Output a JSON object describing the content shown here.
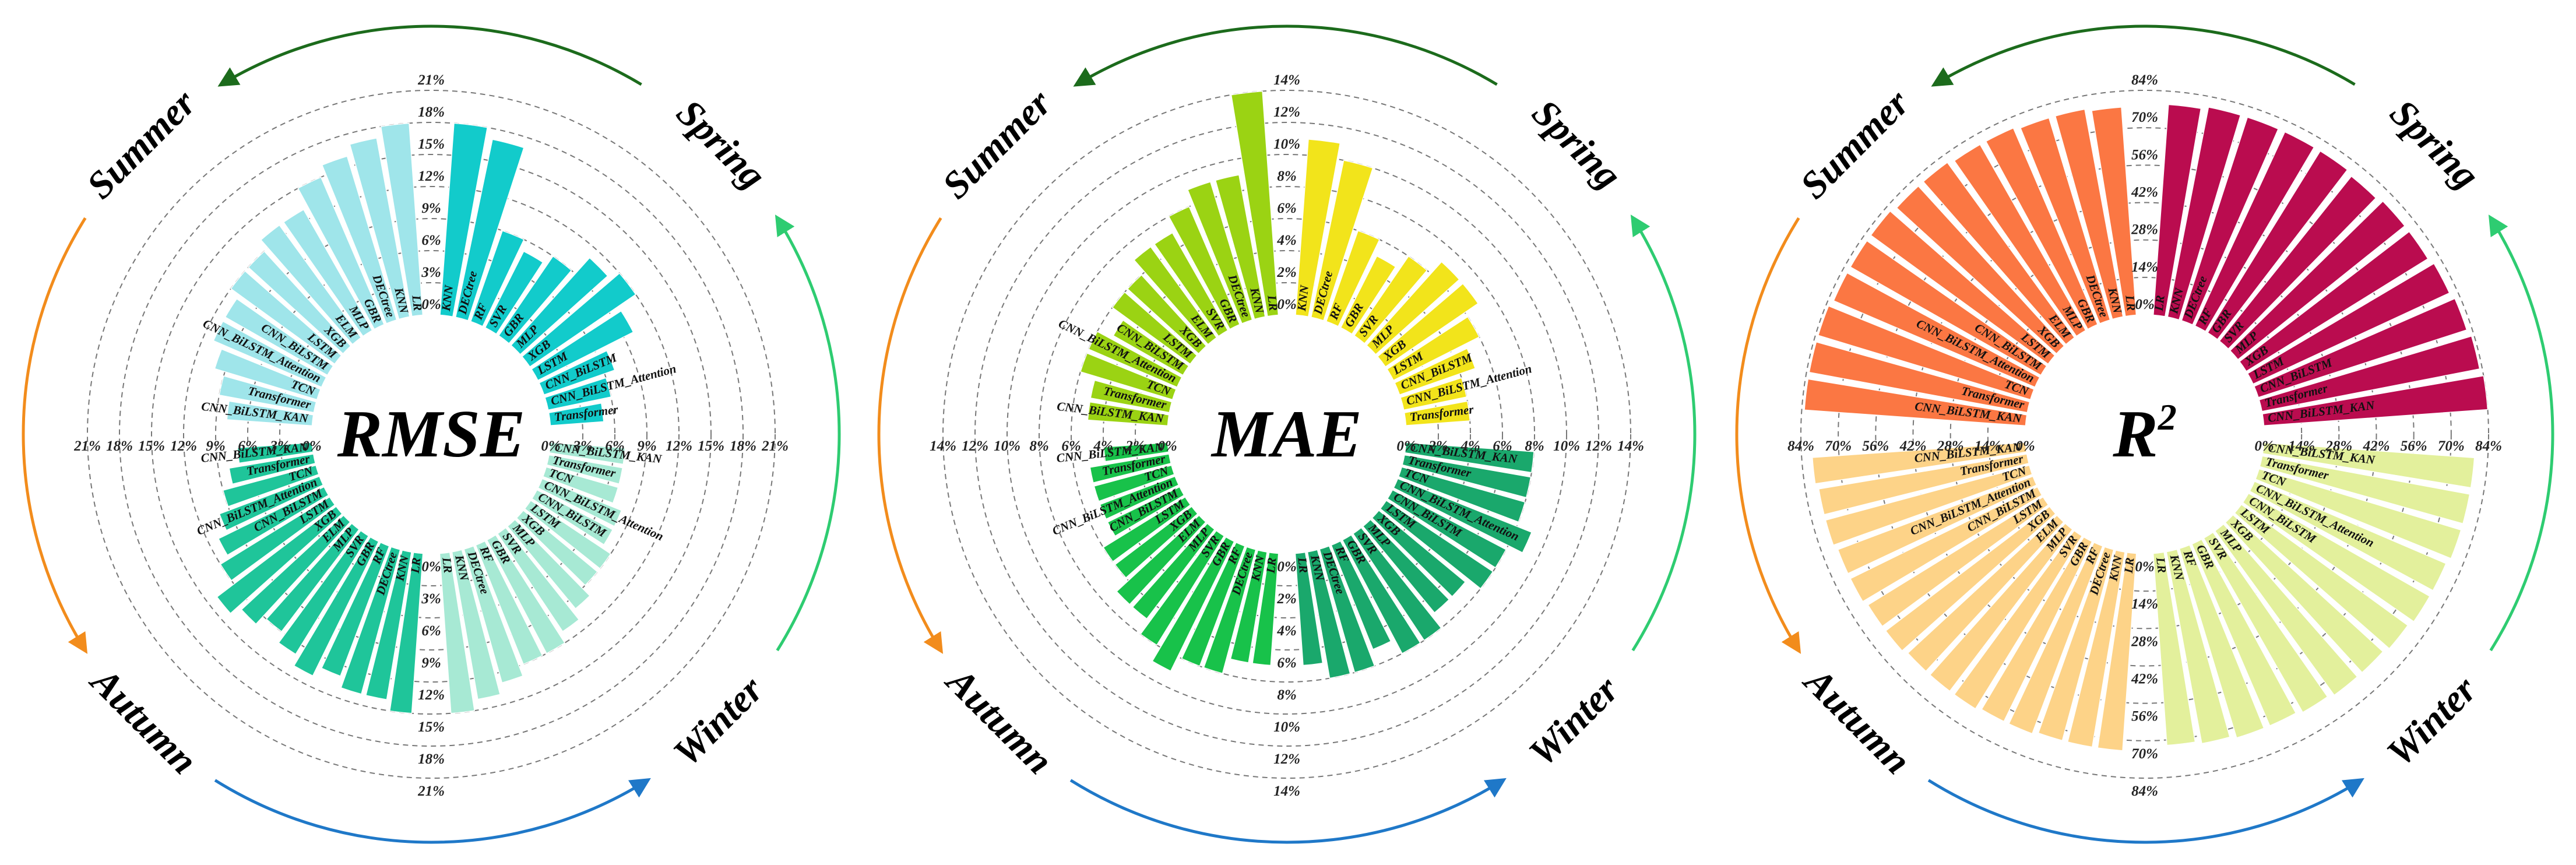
{
  "chart_data": [
    {
      "type": "radial-bar",
      "title": "RMSE",
      "title_sup": "",
      "tick_suffix": "%",
      "ticks": [
        0,
        3,
        6,
        9,
        12,
        15,
        18,
        21
      ],
      "rmax": 21,
      "season_order": [
        "Spring",
        "Winter",
        "Autumn",
        "Summer"
      ],
      "seasons": [
        {
          "name": "Spring",
          "color": "#12cbcb",
          "models": [
            "KNN",
            "DECtree",
            "RF",
            "SVR",
            "GBR",
            "MLP",
            "XGB",
            "LSTM",
            "CNN_BiLSTM",
            "CNN_BiLSTM_Attention",
            "Transformer"
          ],
          "values": [
            18,
            17,
            9,
            8,
            9,
            11,
            12,
            10,
            7,
            6,
            5
          ]
        },
        {
          "name": "Winter",
          "color": "#a7e9d4",
          "models": [
            "CNN_BiLSTM_KAN",
            "Transformer",
            "TCN",
            "CNN_BiLSTM_Attention",
            "CNN_BiLSTM",
            "LSTM",
            "XGB",
            "MLP",
            "SVR",
            "GBR",
            "RF",
            "DECtree",
            "KNN",
            "LR"
          ],
          "values": [
            7,
            7,
            7,
            8,
            8,
            9,
            9,
            10,
            11,
            12,
            12,
            13,
            14,
            15
          ]
        },
        {
          "name": "Autumn",
          "color": "#1fc59a",
          "models": [
            "LR",
            "KNN",
            "DECtree",
            "RF",
            "GBR",
            "SVR",
            "MLP",
            "ELM",
            "XGB",
            "LSTM",
            "CNN_BiLSTM",
            "CNN_BiLSTM_Attention",
            "TCN",
            "Transformer",
            "CNN_BiLSTM_KAN"
          ],
          "values": [
            15,
            14,
            14,
            13,
            14,
            13,
            12,
            13,
            14,
            12,
            11,
            10,
            9,
            8,
            7
          ]
        },
        {
          "name": "Summer",
          "color": "#9fe5ea",
          "models": [
            "CNN_BiLSTM_KAN",
            "Transformer",
            "TCN",
            "CNN_BiLSTM_Attention",
            "CNN_BiLSTM",
            "LSTM",
            "XGB",
            "ELM",
            "MLP",
            "GBR",
            "DECtree",
            "KNN",
            "LR"
          ],
          "values": [
            8,
            9,
            10,
            11,
            11,
            12,
            12,
            13,
            13,
            15,
            16,
            17,
            18
          ]
        }
      ]
    },
    {
      "type": "radial-bar",
      "title": "MAE",
      "title_sup": "",
      "tick_suffix": "%",
      "ticks": [
        0,
        2,
        4,
        6,
        8,
        10,
        12,
        14
      ],
      "rmax": 14,
      "season_order": [
        "Spring",
        "Winter",
        "Autumn",
        "Summer"
      ],
      "seasons": [
        {
          "name": "Spring",
          "color": "#f2e41b",
          "models": [
            "KNN",
            "DECtree",
            "RF",
            "GBR",
            "SVR",
            "MLP",
            "XGB",
            "LSTM",
            "CNN_BiLSTM",
            "CNN_BiLSTM_Attention",
            "Transformer"
          ],
          "values": [
            11,
            10,
            6,
            5,
            6,
            7,
            7,
            6,
            5,
            4,
            4
          ]
        },
        {
          "name": "Winter",
          "color": "#1aa86c",
          "models": [
            "CNN_BiLSTM_KAN",
            "Transformer",
            "TCN",
            "CNN_BiLSTM_Attention",
            "CNN_BiLSTM",
            "LSTM",
            "XGB",
            "MLP",
            "SVR",
            "GBR",
            "RF",
            "DECtree",
            "KNN",
            "LR"
          ],
          "values": [
            8,
            8,
            8,
            9,
            8,
            8,
            7,
            7,
            8,
            8,
            7,
            8,
            8,
            7
          ]
        },
        {
          "name": "Autumn",
          "color": "#18c24a",
          "models": [
            "LR",
            "KNN",
            "DECtree",
            "RF",
            "GBR",
            "SVR",
            "MLP",
            "ELM",
            "XGB",
            "LSTM",
            "CNN_BiLSTM",
            "CNN_BiLSTM_Attention",
            "TCN",
            "Transformer",
            "CNN_BiLSTM_KAN"
          ],
          "values": [
            7,
            7,
            8,
            8,
            9,
            8,
            7,
            7,
            6,
            6,
            5,
            5,
            5,
            5,
            4
          ]
        },
        {
          "name": "Summer",
          "color": "#9bd313",
          "models": [
            "CNN_BiLSTM_KAN",
            "Transformer",
            "TCN",
            "CNN_BiLSTM_Attention",
            "CNN_BiLSTM",
            "LSTM",
            "XGB",
            "ELM",
            "SVR",
            "GBR",
            "DECtree",
            "KNN",
            "LR"
          ],
          "values": [
            5,
            5,
            6,
            6,
            5,
            6,
            6,
            7,
            7,
            8,
            9,
            9,
            14
          ]
        }
      ]
    },
    {
      "type": "radial-bar",
      "title": "R",
      "title_sup": "2",
      "tick_suffix": "%",
      "ticks": [
        0,
        14,
        28,
        42,
        56,
        70,
        84
      ],
      "rmax": 84,
      "season_order": [
        "Spring",
        "Winter",
        "Autumn",
        "Summer"
      ],
      "seasons": [
        {
          "name": "Spring",
          "color": "#ba0c4f",
          "models": [
            "LR",
            "KNN",
            "DECtree",
            "RF",
            "GBR",
            "SVR",
            "MLP",
            "XGB",
            "LSTM",
            "CNN_BiLSTM",
            "Transformer",
            "CNN_BiLSTM_KAN"
          ],
          "values": [
            79,
            80,
            80,
            80,
            80,
            79,
            80,
            80,
            81,
            82,
            83,
            84
          ]
        },
        {
          "name": "Winter",
          "color": "#e3f09c",
          "models": [
            "CNN_BiLSTM_KAN",
            "Transformer",
            "TCN",
            "CNN_BiLSTM_Attention",
            "CNN_BiLSTM",
            "LSTM",
            "XGB",
            "MLP",
            "SVR",
            "GBR",
            "RF",
            "KNN",
            "LR"
          ],
          "values": [
            79,
            79,
            79,
            78,
            78,
            77,
            76,
            76,
            75,
            74,
            74,
            73,
            72
          ]
        },
        {
          "name": "Autumn",
          "color": "#fdd388",
          "models": [
            "LR",
            "KNN",
            "DECtree",
            "RF",
            "GBR",
            "SVR",
            "MLP",
            "ELM",
            "XGB",
            "LSTM",
            "CNN_BiLSTM",
            "CNN_BiLSTM_Attention",
            "TCN",
            "Transformer",
            "CNN_BiLSTM_KAN"
          ],
          "values": [
            74,
            74,
            74,
            75,
            75,
            76,
            76,
            76,
            77,
            77,
            78,
            78,
            79,
            79,
            80
          ]
        },
        {
          "name": "Summer",
          "color": "#fb7743",
          "models": [
            "CNN_BiLSTM_KAN",
            "Transformer",
            "TCN",
            "CNN_BiLSTM_Attention",
            "CNN_BiLSTM",
            "LSTM",
            "XGB",
            "ELM",
            "MLP",
            "GBR",
            "DECtree",
            "KNN",
            "LR"
          ],
          "values": [
            83,
            83,
            83,
            82,
            82,
            82,
            81,
            81,
            80,
            80,
            79,
            79,
            78
          ]
        }
      ]
    }
  ],
  "colors": {
    "arrow_top": "#1c6b1c",
    "arrow_right": "#2ecc71",
    "arrow_bottom": "#1f78c8",
    "arrow_left": "#f28c1c"
  }
}
